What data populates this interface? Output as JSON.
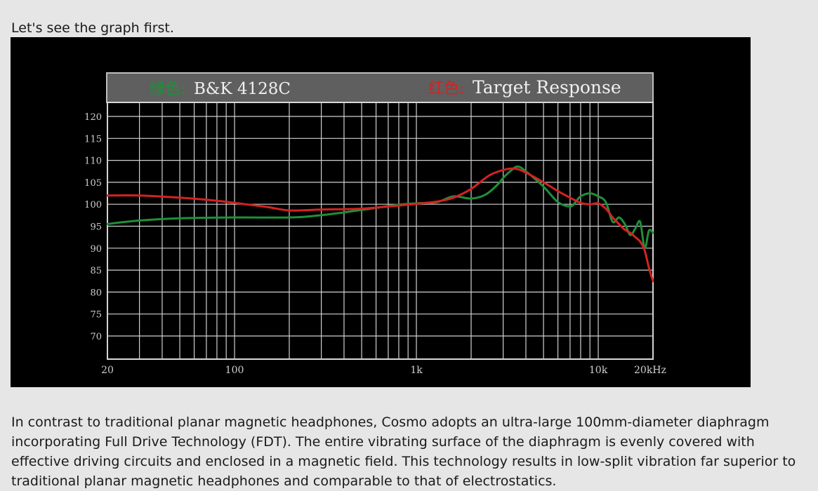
{
  "intro_text": "Let's see the graph first.",
  "paragraph": "In contrast to traditional planar magnetic headphones, Cosmo adopts an ultra-large 100mm-diameter diaphragm incorporating Full Drive Technology (FDT). The entire vibrating surface of the diaphragm is evenly covered with effective driving circuits and enclosed in a magnetic field. This technology results in low-split vibration far superior to traditional planar magnetic headphones and comparable to that of electrostatics.",
  "chart_data": {
    "type": "line",
    "title": "",
    "xlabel": "",
    "ylabel": "",
    "x_scale": "log",
    "xlim": [
      20,
      20000
    ],
    "ylim": [
      65,
      125
    ],
    "grid": true,
    "legend_position": "top",
    "y_ticks": [
      "120",
      "115",
      "110",
      "105",
      "100",
      "95",
      "90",
      "85",
      "80",
      "75",
      "70"
    ],
    "x_tick_labels": [
      {
        "value": 20,
        "label": "20"
      },
      {
        "value": 100,
        "label": "100"
      },
      {
        "value": 1000,
        "label": "1k"
      },
      {
        "value": 10000,
        "label": "10k"
      },
      {
        "value": 20000,
        "label": "20kHz"
      }
    ],
    "series": [
      {
        "name": "B&K 4128C",
        "legend_prefix": "绿色:",
        "color": "#1f8f3a",
        "x": [
          20,
          30,
          50,
          100,
          200,
          300,
          500,
          800,
          1000,
          1300,
          1600,
          2000,
          2400,
          2800,
          3000,
          3300,
          3600,
          4000,
          5000,
          6000,
          7000,
          7500,
          8000,
          9000,
          10000,
          11000,
          12000,
          13000,
          14000,
          15000,
          16000,
          17000,
          18000,
          19000,
          20000
        ],
        "y": [
          95.5,
          96.3,
          96.8,
          97,
          97,
          97.5,
          98.7,
          99.9,
          100.2,
          100.5,
          101.8,
          101.3,
          102.2,
          104.5,
          106,
          107.6,
          108.6,
          107.5,
          104,
          100.5,
          99.5,
          100.5,
          101.8,
          102.5,
          101.8,
          100.5,
          96,
          97,
          95.5,
          93,
          94.5,
          96,
          90,
          94,
          93.5
        ]
      },
      {
        "name": "Target Response",
        "legend_prefix": "红色:",
        "color": "#d42222",
        "x": [
          20,
          30,
          50,
          80,
          100,
          150,
          200,
          300,
          500,
          800,
          1000,
          1300,
          1600,
          2000,
          2500,
          3000,
          3500,
          4000,
          5000,
          6000,
          7000,
          8000,
          9000,
          10000,
          11000,
          12000,
          13000,
          14000,
          15000,
          16000,
          17000,
          18000,
          19000,
          20000
        ],
        "y": [
          102,
          102,
          101.5,
          100.8,
          100.3,
          99.4,
          98.6,
          98.8,
          99,
          99.7,
          100.1,
          100.6,
          101.5,
          103.5,
          106.5,
          107.8,
          108.1,
          107.2,
          105,
          103,
          101.5,
          100.3,
          100,
          100.2,
          99,
          97,
          95.5,
          94.2,
          93.5,
          92.5,
          91.5,
          89.5,
          85.5,
          82.5
        ]
      }
    ]
  }
}
